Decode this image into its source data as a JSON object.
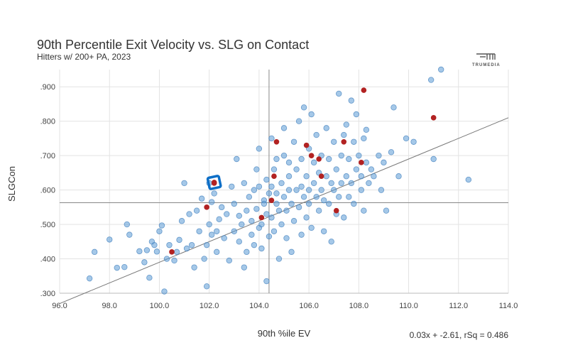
{
  "chart_data": {
    "type": "scatter",
    "title": "90th Percentile Exit Velocity vs. SLG on Contact",
    "subtitle": "Hitters w/ 200+ PA, 2023",
    "xlabel": "90th %ile EV",
    "ylabel": "SLGCon",
    "brand": "TRUMEDIA",
    "equation_text": "0.03x + -2.61, rSq = 0.486",
    "xlim": [
      96.0,
      114.0
    ],
    "ylim": [
      0.3,
      0.95
    ],
    "x_ticks": [
      96,
      98,
      100,
      102,
      104,
      106,
      108,
      110,
      112,
      114
    ],
    "x_tick_labels": [
      "96.0",
      "98.0",
      "100.0",
      "102.0",
      "104.0",
      "106.0",
      "108.0",
      "110.0",
      "112.0",
      "114.0"
    ],
    "y_ticks": [
      0.3,
      0.4,
      0.5,
      0.6,
      0.7,
      0.8,
      0.9
    ],
    "y_tick_labels": [
      ".300",
      ".400",
      ".500",
      ".600",
      ".700",
      ".800",
      ".900"
    ],
    "grid": true,
    "reference_lines": {
      "x": 104.4,
      "y": 0.563
    },
    "trendline": {
      "slope": 0.03,
      "intercept": -2.61
    },
    "colors": {
      "points": "#5b9bd5",
      "highlight": "#b22222",
      "selected_marker": "#0e6fc7",
      "trend": "#777777",
      "grid": "#e3e3e3"
    },
    "series": [
      {
        "role": "all-hitters",
        "points": [
          [
            97.2,
            0.343
          ],
          [
            97.4,
            0.42
          ],
          [
            98.0,
            0.456
          ],
          [
            98.3,
            0.374
          ],
          [
            98.6,
            0.376
          ],
          [
            98.7,
            0.5
          ],
          [
            98.8,
            0.47
          ],
          [
            99.2,
            0.422
          ],
          [
            99.4,
            0.39
          ],
          [
            99.5,
            0.425
          ],
          [
            99.6,
            0.345
          ],
          [
            99.7,
            0.45
          ],
          [
            99.8,
            0.44
          ],
          [
            99.9,
            0.421
          ],
          [
            100.0,
            0.48
          ],
          [
            100.1,
            0.497
          ],
          [
            100.2,
            0.305
          ],
          [
            100.3,
            0.4
          ],
          [
            100.4,
            0.44
          ],
          [
            100.6,
            0.395
          ],
          [
            100.7,
            0.42
          ],
          [
            100.8,
            0.455
          ],
          [
            100.9,
            0.51
          ],
          [
            101.0,
            0.62
          ],
          [
            101.1,
            0.43
          ],
          [
            101.2,
            0.53
          ],
          [
            101.3,
            0.44
          ],
          [
            101.4,
            0.375
          ],
          [
            101.5,
            0.54
          ],
          [
            101.6,
            0.48
          ],
          [
            101.7,
            0.575
          ],
          [
            101.8,
            0.4
          ],
          [
            101.9,
            0.32
          ],
          [
            101.9,
            0.44
          ],
          [
            102.0,
            0.5
          ],
          [
            102.0,
            0.62
          ],
          [
            102.1,
            0.47
          ],
          [
            102.1,
            0.565
          ],
          [
            102.2,
            0.59
          ],
          [
            102.3,
            0.48
          ],
          [
            102.3,
            0.42
          ],
          [
            102.4,
            0.515
          ],
          [
            102.5,
            0.55
          ],
          [
            102.6,
            0.46
          ],
          [
            102.7,
            0.53
          ],
          [
            102.8,
            0.395
          ],
          [
            102.9,
            0.61
          ],
          [
            103.0,
            0.48
          ],
          [
            103.0,
            0.56
          ],
          [
            103.1,
            0.69
          ],
          [
            103.2,
            0.45
          ],
          [
            103.2,
            0.525
          ],
          [
            103.3,
            0.5
          ],
          [
            103.4,
            0.62
          ],
          [
            103.4,
            0.375
          ],
          [
            103.5,
            0.54
          ],
          [
            103.5,
            0.42
          ],
          [
            103.6,
            0.58
          ],
          [
            103.7,
            0.47
          ],
          [
            103.7,
            0.51
          ],
          [
            103.8,
            0.6
          ],
          [
            103.8,
            0.44
          ],
          [
            103.9,
            0.66
          ],
          [
            103.9,
            0.545
          ],
          [
            104.0,
            0.49
          ],
          [
            104.0,
            0.72
          ],
          [
            104.0,
            0.61
          ],
          [
            104.1,
            0.43
          ],
          [
            104.1,
            0.5
          ],
          [
            104.2,
            0.57
          ],
          [
            104.2,
            0.56
          ],
          [
            104.3,
            0.335
          ],
          [
            104.3,
            0.63
          ],
          [
            104.3,
            0.53
          ],
          [
            104.4,
            0.465
          ],
          [
            104.4,
            0.59
          ],
          [
            104.5,
            0.75
          ],
          [
            104.5,
            0.52
          ],
          [
            104.5,
            0.61
          ],
          [
            104.6,
            0.66
          ],
          [
            104.6,
            0.48
          ],
          [
            104.7,
            0.56
          ],
          [
            104.7,
            0.69
          ],
          [
            104.7,
            0.59
          ],
          [
            104.8,
            0.54
          ],
          [
            104.8,
            0.4
          ],
          [
            104.9,
            0.62
          ],
          [
            104.9,
            0.5
          ],
          [
            105.0,
            0.7
          ],
          [
            105.0,
            0.58
          ],
          [
            105.0,
            0.78
          ],
          [
            105.1,
            0.54
          ],
          [
            105.1,
            0.46
          ],
          [
            105.2,
            0.68
          ],
          [
            105.2,
            0.6
          ],
          [
            105.2,
            0.64
          ],
          [
            105.3,
            0.56
          ],
          [
            105.3,
            0.42
          ],
          [
            105.4,
            0.74
          ],
          [
            105.4,
            0.51
          ],
          [
            105.5,
            0.6
          ],
          [
            105.5,
            0.66
          ],
          [
            105.6,
            0.55
          ],
          [
            105.6,
            0.8
          ],
          [
            105.7,
            0.47
          ],
          [
            105.7,
            0.61
          ],
          [
            105.7,
            0.69
          ],
          [
            105.8,
            0.58
          ],
          [
            105.8,
            0.84
          ],
          [
            105.9,
            0.52
          ],
          [
            105.9,
            0.64
          ],
          [
            106.0,
            0.6
          ],
          [
            106.0,
            0.72
          ],
          [
            106.0,
            0.56
          ],
          [
            106.1,
            0.82
          ],
          [
            106.1,
            0.49
          ],
          [
            106.2,
            0.62
          ],
          [
            106.2,
            0.68
          ],
          [
            106.3,
            0.58
          ],
          [
            106.3,
            0.76
          ],
          [
            106.4,
            0.54
          ],
          [
            106.4,
            0.65
          ],
          [
            106.5,
            0.6
          ],
          [
            106.5,
            0.7
          ],
          [
            106.6,
            0.57
          ],
          [
            106.6,
            0.48
          ],
          [
            106.7,
            0.64
          ],
          [
            106.7,
            0.78
          ],
          [
            106.8,
            0.56
          ],
          [
            106.8,
            0.69
          ],
          [
            106.9,
            0.62
          ],
          [
            106.9,
            0.45
          ],
          [
            107.0,
            0.6
          ],
          [
            107.0,
            0.74
          ],
          [
            107.1,
            0.53
          ],
          [
            107.1,
            0.66
          ],
          [
            107.2,
            0.88
          ],
          [
            107.2,
            0.58
          ],
          [
            107.3,
            0.7
          ],
          [
            107.3,
            0.62
          ],
          [
            107.4,
            0.76
          ],
          [
            107.4,
            0.52
          ],
          [
            107.5,
            0.64
          ],
          [
            107.5,
            0.79
          ],
          [
            107.6,
            0.58
          ],
          [
            107.6,
            0.69
          ],
          [
            107.7,
            0.86
          ],
          [
            107.7,
            0.62
          ],
          [
            107.8,
            0.74
          ],
          [
            107.8,
            0.56
          ],
          [
            107.9,
            0.66
          ],
          [
            107.9,
            0.82
          ],
          [
            108.0,
            0.7
          ],
          [
            108.1,
            0.6
          ],
          [
            108.1,
            0.64
          ],
          [
            108.2,
            0.75
          ],
          [
            108.2,
            0.54
          ],
          [
            108.3,
            0.68
          ],
          [
            108.3,
            0.775
          ],
          [
            108.4,
            0.62
          ],
          [
            108.5,
            0.66
          ],
          [
            108.6,
            0.64
          ],
          [
            108.8,
            0.7
          ],
          [
            108.9,
            0.6
          ],
          [
            109.0,
            0.68
          ],
          [
            109.1,
            0.54
          ],
          [
            109.3,
            0.71
          ],
          [
            109.4,
            0.84
          ],
          [
            109.6,
            0.64
          ],
          [
            109.9,
            0.75
          ],
          [
            110.2,
            0.74
          ],
          [
            110.9,
            0.92
          ],
          [
            111.0,
            0.69
          ],
          [
            111.3,
            0.95
          ],
          [
            112.4,
            0.63
          ]
        ]
      },
      {
        "role": "highlighted",
        "points": [
          [
            100.5,
            0.42
          ],
          [
            101.9,
            0.55
          ],
          [
            102.2,
            0.62
          ],
          [
            104.1,
            0.52
          ],
          [
            104.5,
            0.57
          ],
          [
            104.6,
            0.64
          ],
          [
            104.7,
            0.74
          ],
          [
            105.9,
            0.73
          ],
          [
            106.1,
            0.7
          ],
          [
            106.4,
            0.69
          ],
          [
            106.5,
            0.64
          ],
          [
            107.1,
            0.54
          ],
          [
            107.4,
            0.74
          ],
          [
            108.1,
            0.68
          ],
          [
            108.2,
            0.89
          ],
          [
            111.0,
            0.81
          ]
        ]
      }
    ],
    "selected_point": [
      102.2,
      0.622
    ]
  }
}
